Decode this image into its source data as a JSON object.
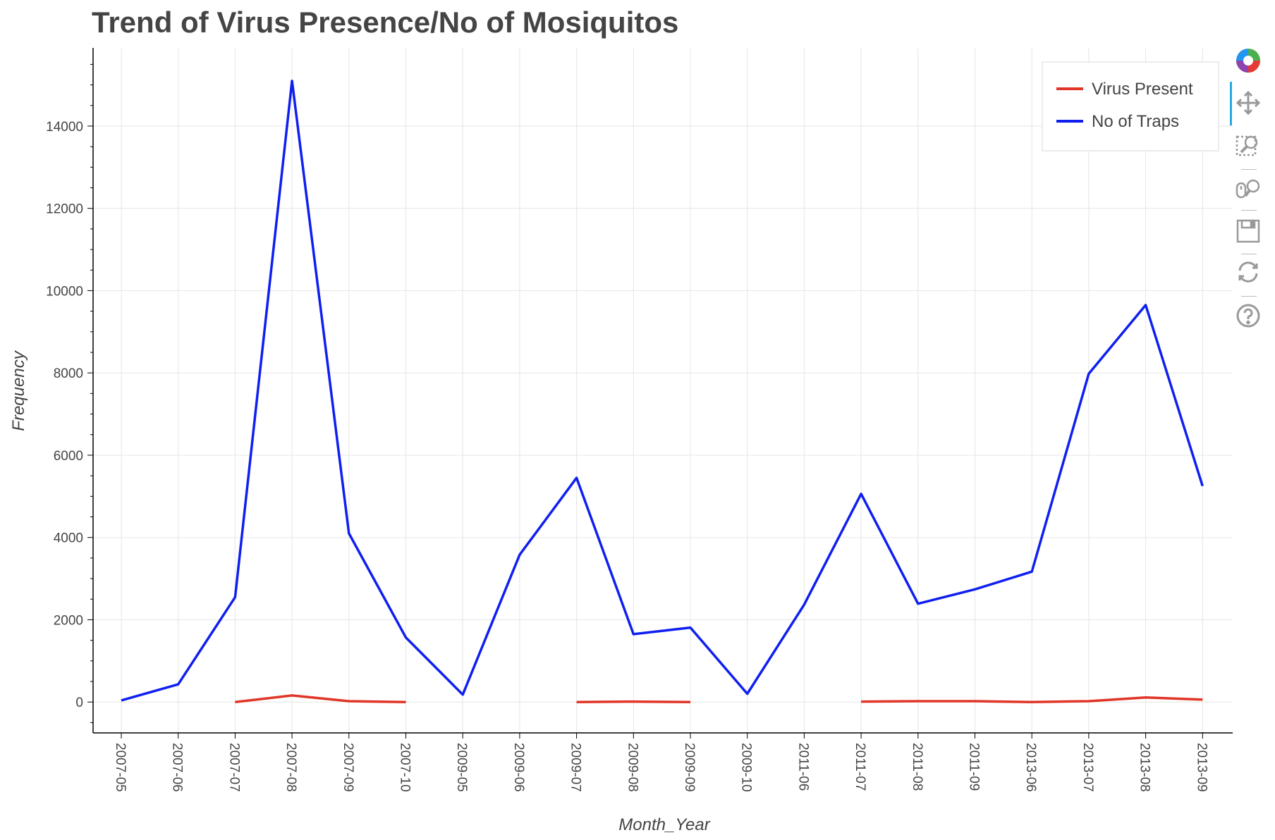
{
  "chart_data": {
    "type": "line",
    "title": "Trend of Virus Presence/No of Mosiquitos",
    "xlabel": "Month_Year",
    "ylabel": "Frequency",
    "ylim": [
      -750,
      15900
    ],
    "y_ticks": [
      0,
      2000,
      4000,
      6000,
      8000,
      10000,
      12000,
      14000
    ],
    "grid": true,
    "legend_position": "top-right",
    "categories": [
      "2007-05",
      "2007-06",
      "2007-07",
      "2007-08",
      "2007-09",
      "2007-10",
      "2009-05",
      "2009-06",
      "2009-07",
      "2009-08",
      "2009-09",
      "2009-10",
      "2011-06",
      "2011-07",
      "2011-08",
      "2011-09",
      "2013-06",
      "2013-07",
      "2013-08",
      "2013-09"
    ],
    "series": [
      {
        "name": "Virus Present",
        "color": "#e03527",
        "values": [
          null,
          null,
          0,
          160,
          20,
          0,
          null,
          null,
          0,
          10,
          0,
          null,
          null,
          10,
          20,
          20,
          0,
          20,
          110,
          60
        ]
      },
      {
        "name": "No of Traps",
        "color": "#0f1ff0",
        "values": [
          40,
          430,
          2550,
          15100,
          4100,
          1570,
          180,
          3580,
          5450,
          1650,
          1810,
          200,
          2370,
          5060,
          2390,
          2740,
          3170,
          7980,
          9650,
          5250
        ]
      }
    ]
  },
  "toolbar": {
    "tools": [
      "bokeh-logo-icon",
      "pan-icon",
      "box-zoom-icon",
      "wheel-zoom-icon",
      "save-icon",
      "reset-icon",
      "help-icon"
    ]
  }
}
